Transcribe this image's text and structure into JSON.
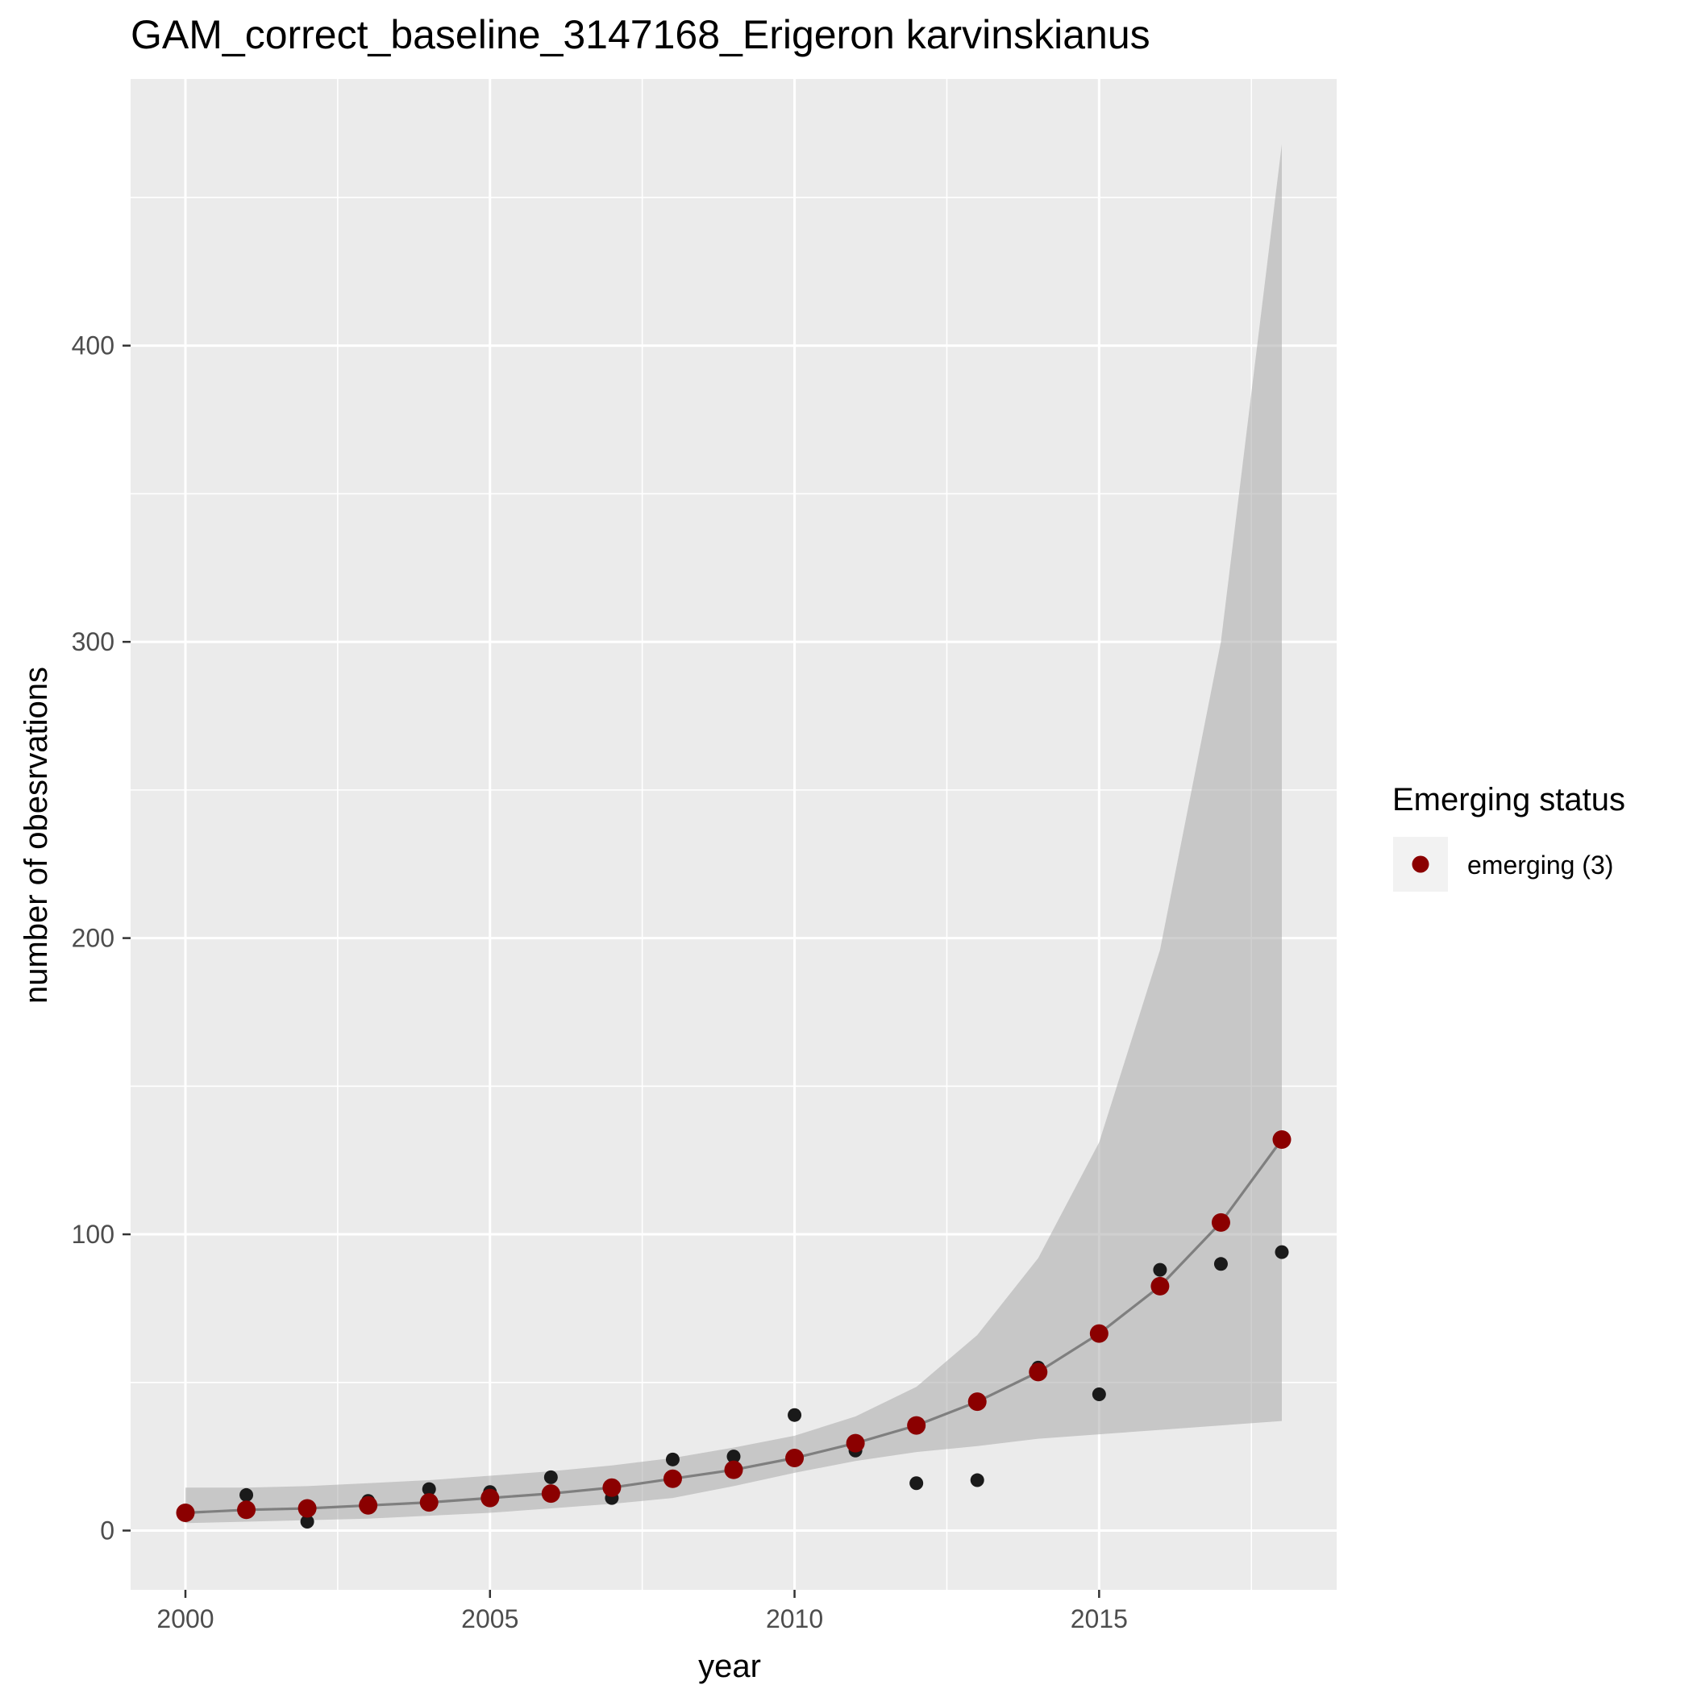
{
  "chart_data": {
    "type": "scatter",
    "title": "GAM_correct_baseline_3147168_Erigeron karvinskianus",
    "xlabel": "year",
    "ylabel": "number of obesrvations",
    "xlim": [
      1999.1,
      2018.9
    ],
    "ylim": [
      -20,
      490
    ],
    "x_ticks": [
      2000,
      2005,
      2010,
      2015
    ],
    "y_ticks": [
      0,
      100,
      200,
      300,
      400
    ],
    "grid": true,
    "panel_background": "#ebebeb",
    "grid_color": "#ffffff",
    "observed": {
      "color": "#1a1a1a",
      "x": [
        2000,
        2001,
        2002,
        2003,
        2004,
        2005,
        2006,
        2007,
        2008,
        2009,
        2010,
        2011,
        2012,
        2013,
        2014,
        2015,
        2016,
        2017,
        2018
      ],
      "y": [
        6,
        12,
        3,
        10,
        14,
        13,
        18,
        11,
        24,
        25,
        39,
        27,
        16,
        17,
        55,
        46,
        88,
        90,
        94
      ]
    },
    "fitted": {
      "line_color": "#7f7f7f",
      "point_color": "#8b0000",
      "x": [
        2000,
        2001,
        2002,
        2003,
        2004,
        2005,
        2006,
        2007,
        2008,
        2009,
        2010,
        2011,
        2012,
        2013,
        2014,
        2015,
        2016,
        2017,
        2018
      ],
      "y": [
        6,
        7,
        7.5,
        8.5,
        9.5,
        11,
        12.5,
        14.5,
        17.5,
        20.5,
        24.5,
        29.5,
        35.5,
        43.5,
        53.5,
        66.5,
        82.5,
        104,
        132
      ]
    },
    "confidence_band": {
      "fill_color": "#a9a9a9",
      "opacity": 0.55,
      "x": [
        2000,
        2001,
        2002,
        2003,
        2004,
        2005,
        2006,
        2007,
        2008,
        2009,
        2010,
        2011,
        2012,
        2013,
        2014,
        2015,
        2016,
        2017,
        2018
      ],
      "lower": [
        2.5,
        3,
        3.5,
        4,
        5,
        6,
        7.5,
        9,
        11,
        15,
        19.5,
        23.5,
        26.5,
        28.5,
        31,
        32.5,
        34,
        35.5,
        37
      ],
      "upper": [
        14.5,
        14.5,
        15,
        16,
        17,
        18.5,
        20,
        22,
        24.5,
        28,
        32,
        38.5,
        48.5,
        66,
        92,
        131,
        196,
        300,
        468
      ]
    },
    "legend": {
      "title": "Emerging status",
      "position": "right",
      "entries": [
        {
          "label": "emerging (3)",
          "color": "#8b0000"
        }
      ]
    }
  }
}
